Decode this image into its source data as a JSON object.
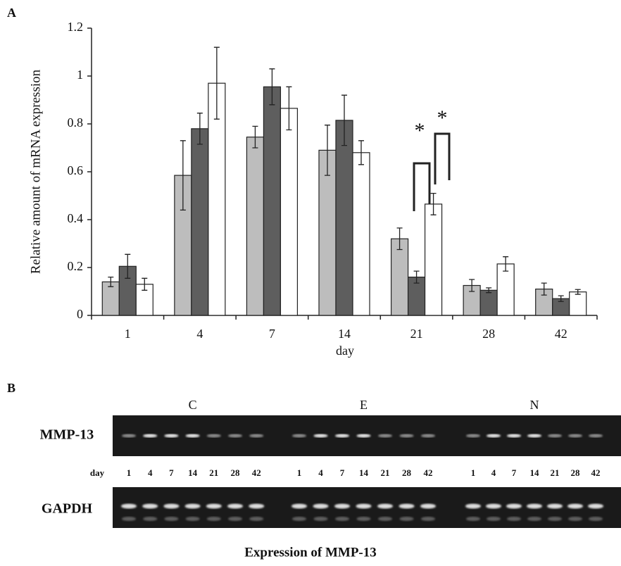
{
  "chart_data": {
    "type": "bar",
    "panel_label": "A",
    "y_label": "Relative amount of mRNA expression",
    "x_label": "day",
    "categories": [
      "1",
      "4",
      "7",
      "14",
      "21",
      "28",
      "42"
    ],
    "series": [
      {
        "color": "#bdbdbd",
        "values": [
          0.14,
          0.585,
          0.745,
          0.69,
          0.32,
          0.125,
          0.11
        ],
        "errors": [
          0.02,
          0.145,
          0.045,
          0.105,
          0.045,
          0.025,
          0.025
        ]
      },
      {
        "color": "#5e5e5e",
        "values": [
          0.205,
          0.78,
          0.955,
          0.815,
          0.16,
          0.105,
          0.07
        ],
        "errors": [
          0.05,
          0.065,
          0.075,
          0.105,
          0.025,
          0.01,
          0.012
        ]
      },
      {
        "color": "#ffffff",
        "values": [
          0.13,
          0.97,
          0.865,
          0.68,
          0.465,
          0.215,
          0.098
        ],
        "errors": [
          0.025,
          0.15,
          0.09,
          0.05,
          0.045,
          0.03,
          0.01
        ]
      }
    ],
    "ylim": [
      0,
      1.2
    ],
    "yticks": [
      0,
      0.2,
      0.4,
      0.6,
      0.8,
      1,
      1.2
    ],
    "annotations": [
      "*",
      "*"
    ]
  },
  "gel": {
    "panel_label": "B",
    "groups": [
      {
        "label": "C",
        "lanes": [
          "1",
          "4",
          "7",
          "14",
          "21",
          "28",
          "42"
        ]
      },
      {
        "label": "E",
        "lanes": [
          "1",
          "4",
          "7",
          "14",
          "21",
          "28",
          "42"
        ]
      },
      {
        "label": "N",
        "lanes": [
          "1",
          "4",
          "7",
          "14",
          "21",
          "28",
          "42"
        ]
      }
    ],
    "rows": [
      "MMP-13",
      "GAPDH"
    ],
    "day_label": "day",
    "caption": "Expression of MMP-13"
  }
}
